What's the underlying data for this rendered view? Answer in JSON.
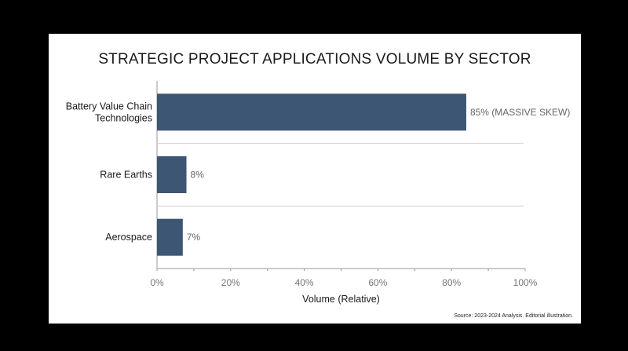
{
  "chart_data": {
    "type": "bar",
    "orientation": "horizontal",
    "title": "STRATEGIC PROJECT APPLICATIONS VOLUME BY SECTOR",
    "categories": [
      [
        "Battery Value Chain",
        "Technologies"
      ],
      [
        "Rare Earths"
      ],
      [
        "Aerospace"
      ]
    ],
    "values": [
      84,
      8,
      7
    ],
    "data_labels": [
      "85% (MASSIVE SKEW)",
      "8%",
      "7%"
    ],
    "xlabel": "Volume (Relative)",
    "ylabel": "",
    "xlim": [
      0,
      100
    ],
    "xticks": [
      0,
      20,
      40,
      60,
      80,
      100
    ],
    "xtick_labels": [
      "0%",
      "20%",
      "40%",
      "60%",
      "80%",
      "100%"
    ],
    "bar_color": "#3d5673",
    "grid": false,
    "legend": "none"
  },
  "source": "Source: 2023-2024 Analysis. Editorial illustration."
}
